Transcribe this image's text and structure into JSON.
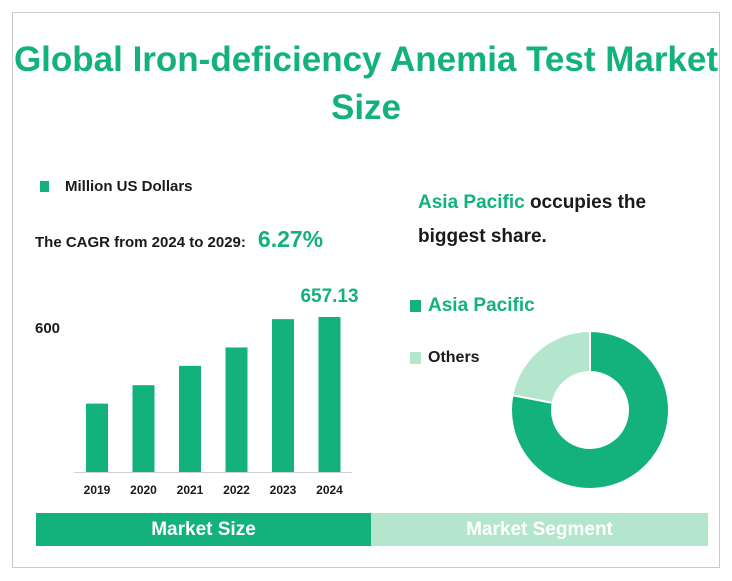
{
  "title": "Global Iron-deficiency Anemia Test Market Size",
  "colors": {
    "primary": "#13b27c",
    "light": "#b3e6cc",
    "text": "#1a1a1a"
  },
  "cagr": {
    "label": "The CAGR from 2024 to 2029:",
    "value": "6.27%"
  },
  "insight": {
    "highlight": "Asia Pacific",
    "text": " occupies the biggest share."
  },
  "tabs": {
    "size": "Market Size",
    "segment": "Market Segment"
  },
  "chart_data": [
    {
      "type": "bar",
      "legend": "Million US Dollars",
      "categories": [
        "2019",
        "2020",
        "2021",
        "2022",
        "2023",
        "2024"
      ],
      "values": [
        290,
        368,
        450,
        528,
        648,
        657.13
      ],
      "data_labels": {
        "5": "657.13"
      },
      "y_tick_labels": [
        {
          "value": 600,
          "label": "600"
        }
      ],
      "ylim": [
        0,
        700
      ],
      "grid": false
    },
    {
      "type": "pie",
      "style": "donut",
      "labels": [
        "Asia Pacific",
        "Others"
      ],
      "values": [
        78,
        22
      ],
      "colors": [
        "#13b27c",
        "#b3e6cc"
      ],
      "legend": "left"
    }
  ]
}
